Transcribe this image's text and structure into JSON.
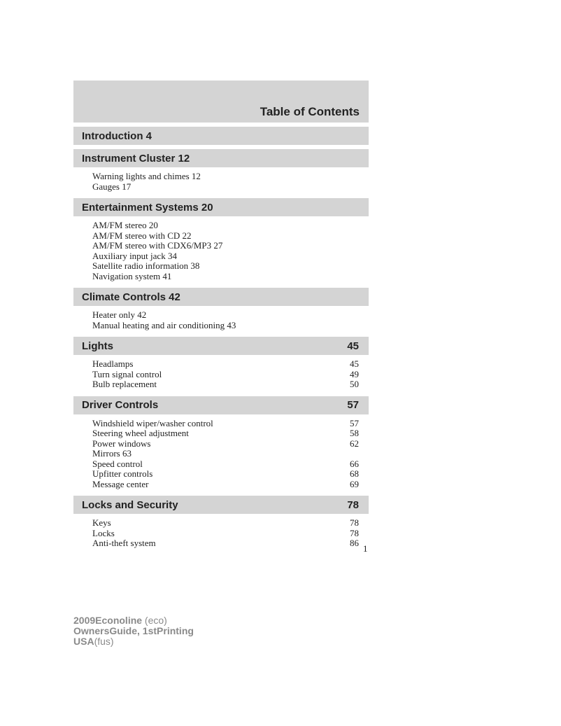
{
  "title": "Table of Contents",
  "sections": [
    {
      "label": "Introduction 4",
      "page": "",
      "items": []
    },
    {
      "label": "Instrument Cluster 12",
      "page": "",
      "items": [
        {
          "label": "Warning lights and chimes 12",
          "page": ""
        },
        {
          "label": "Gauges 17",
          "page": ""
        }
      ]
    },
    {
      "label": "Entertainment Systems 20",
      "page": "",
      "items": [
        {
          "label": "AM/FM stereo 20",
          "page": ""
        },
        {
          "label": "AM/FM stereo with CD 22",
          "page": ""
        },
        {
          "label": "AM/FM stereo with CDX6/MP3 27",
          "page": ""
        },
        {
          "label": "Auxiliary input jack 34",
          "page": ""
        },
        {
          "label": "Satellite radio information 38",
          "page": ""
        },
        {
          "label": "Navigation system 41",
          "page": ""
        }
      ]
    },
    {
      "label": "Climate Controls 42",
      "page": "",
      "items": [
        {
          "label": "Heater only 42",
          "page": ""
        },
        {
          "label": "Manual heating and air conditioning 43",
          "page": ""
        }
      ]
    },
    {
      "label": "Lights",
      "page": "45",
      "items": [
        {
          "label": "Headlamps",
          "page": "45"
        },
        {
          "label": "Turn signal control",
          "page": "49"
        },
        {
          "label": "Bulb replacement",
          "page": "50"
        }
      ]
    },
    {
      "label": "Driver Controls",
      "page": "57",
      "items": [
        {
          "label": "Windshield wiper/washer control",
          "page": "57"
        },
        {
          "label": "Steering wheel adjustment",
          "page": "58"
        },
        {
          "label": "Power windows",
          "page": "62"
        },
        {
          "label": "Mirrors 63",
          "page": ""
        },
        {
          "label": "Speed control",
          "page": "66"
        },
        {
          "label": "Upfitter controls",
          "page": "68"
        },
        {
          "label": "Message center",
          "page": "69"
        }
      ]
    },
    {
      "label": "Locks and Security",
      "page": "78",
      "items": [
        {
          "label": "Keys",
          "page": "78"
        },
        {
          "label": "Locks",
          "page": "78"
        },
        {
          "label": "Anti-theft system",
          "page": "86"
        }
      ]
    }
  ],
  "page_number": "1",
  "footer": {
    "l1a": "2009Econoline",
    "l1b": " (eco)",
    "l2": "OwnersGuide, 1stPrinting",
    "l3a": "USA",
    "l3b": "(fus)"
  }
}
